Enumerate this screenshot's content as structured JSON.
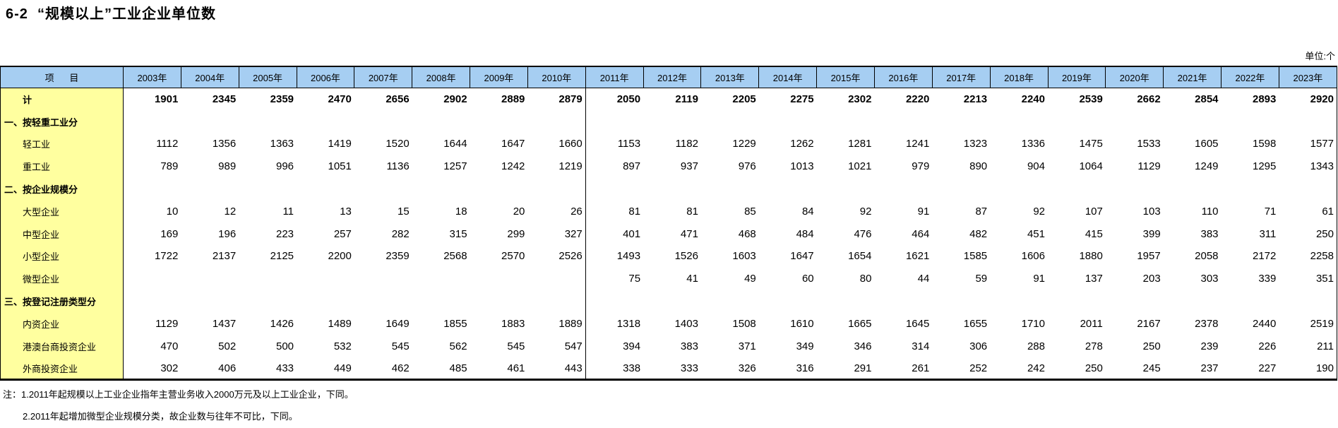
{
  "title": "6-2  “规模以上”工业企业单位数",
  "unit_label": "单位:个",
  "colors": {
    "header_bg": "#A6CEF2",
    "label_bg": "#FFFF9F",
    "border": "#000000"
  },
  "table": {
    "item_header": "项      目",
    "years": [
      "2003年",
      "2004年",
      "2005年",
      "2006年",
      "2007年",
      "2008年",
      "2009年",
      "2010年",
      "2011年",
      "2012年",
      "2013年",
      "2014年",
      "2015年",
      "2016年",
      "2017年",
      "2018年",
      "2019年",
      "2020年",
      "2021年",
      "2022年",
      "2023年"
    ],
    "rows": [
      {
        "label": "计",
        "style": "total",
        "values": [
          "1901",
          "2345",
          "2359",
          "2470",
          "2656",
          "2902",
          "2889",
          "2879",
          "2050",
          "2119",
          "2205",
          "2275",
          "2302",
          "2220",
          "2213",
          "2240",
          "2539",
          "2662",
          "2854",
          "2893",
          "2920"
        ]
      },
      {
        "label": "一、按轻重工业分",
        "style": "section",
        "values": [
          "",
          "",
          "",
          "",
          "",
          "",
          "",
          "",
          "",
          "",
          "",
          "",
          "",
          "",
          "",
          "",
          "",
          "",
          "",
          "",
          ""
        ]
      },
      {
        "label": "轻工业",
        "style": "item",
        "values": [
          "1112",
          "1356",
          "1363",
          "1419",
          "1520",
          "1644",
          "1647",
          "1660",
          "1153",
          "1182",
          "1229",
          "1262",
          "1281",
          "1241",
          "1323",
          "1336",
          "1475",
          "1533",
          "1605",
          "1598",
          "1577"
        ]
      },
      {
        "label": "重工业",
        "style": "item",
        "values": [
          "789",
          "989",
          "996",
          "1051",
          "1136",
          "1257",
          "1242",
          "1219",
          "897",
          "937",
          "976",
          "1013",
          "1021",
          "979",
          "890",
          "904",
          "1064",
          "1129",
          "1249",
          "1295",
          "1343"
        ]
      },
      {
        "label": "二、按企业规模分",
        "style": "section",
        "values": [
          "",
          "",
          "",
          "",
          "",
          "",
          "",
          "",
          "",
          "",
          "",
          "",
          "",
          "",
          "",
          "",
          "",
          "",
          "",
          "",
          ""
        ]
      },
      {
        "label": "大型企业",
        "style": "item",
        "values": [
          "10",
          "12",
          "11",
          "13",
          "15",
          "18",
          "20",
          "26",
          "81",
          "81",
          "85",
          "84",
          "92",
          "91",
          "87",
          "92",
          "107",
          "103",
          "110",
          "71",
          "61"
        ]
      },
      {
        "label": "中型企业",
        "style": "item",
        "values": [
          "169",
          "196",
          "223",
          "257",
          "282",
          "315",
          "299",
          "327",
          "401",
          "471",
          "468",
          "484",
          "476",
          "464",
          "482",
          "451",
          "415",
          "399",
          "383",
          "311",
          "250"
        ]
      },
      {
        "label": "小型企业",
        "style": "item",
        "values": [
          "1722",
          "2137",
          "2125",
          "2200",
          "2359",
          "2568",
          "2570",
          "2526",
          "1493",
          "1526",
          "1603",
          "1647",
          "1654",
          "1621",
          "1585",
          "1606",
          "1880",
          "1957",
          "2058",
          "2172",
          "2258"
        ]
      },
      {
        "label": "微型企业",
        "style": "item",
        "values": [
          "",
          "",
          "",
          "",
          "",
          "",
          "",
          "",
          "75",
          "41",
          "49",
          "60",
          "80",
          "44",
          "59",
          "91",
          "137",
          "203",
          "303",
          "339",
          "351"
        ]
      },
      {
        "label": "三、按登记注册类型分",
        "style": "section",
        "values": [
          "",
          "",
          "",
          "",
          "",
          "",
          "",
          "",
          "",
          "",
          "",
          "",
          "",
          "",
          "",
          "",
          "",
          "",
          "",
          "",
          ""
        ]
      },
      {
        "label": "内资企业",
        "style": "item",
        "values": [
          "1129",
          "1437",
          "1426",
          "1489",
          "1649",
          "1855",
          "1883",
          "1889",
          "1318",
          "1403",
          "1508",
          "1610",
          "1665",
          "1645",
          "1655",
          "1710",
          "2011",
          "2167",
          "2378",
          "2440",
          "2519"
        ]
      },
      {
        "label": "港澳台商投资企业",
        "style": "item",
        "values": [
          "470",
          "502",
          "500",
          "532",
          "545",
          "562",
          "545",
          "547",
          "394",
          "383",
          "371",
          "349",
          "346",
          "314",
          "306",
          "288",
          "278",
          "250",
          "239",
          "226",
          "211"
        ]
      },
      {
        "label": "外商投资企业",
        "style": "item",
        "values": [
          "302",
          "406",
          "433",
          "449",
          "462",
          "485",
          "461",
          "443",
          "338",
          "333",
          "326",
          "316",
          "291",
          "261",
          "252",
          "242",
          "250",
          "245",
          "237",
          "227",
          "190"
        ]
      }
    ],
    "break_after_year_index": 7
  },
  "notes": [
    "注：1.2011年起规模以上工业企业指年主营业务收入2000万元及以上工业企业，下同。",
    "2.2011年起增加微型企业规模分类，故企业数与往年不可比，下同。"
  ]
}
